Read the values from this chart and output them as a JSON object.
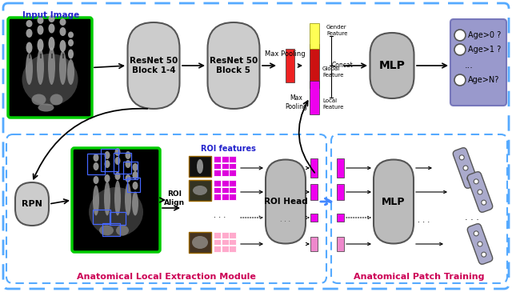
{
  "bg_color": "#ffffff",
  "colors": {
    "resnet_fill": "#cccccc",
    "mlp_fill": "#bbbbbb",
    "rpn_fill": "#cccccc",
    "roi_head_fill": "#bbbbbb",
    "red_bar": "#ee2222",
    "red_bar2": "#cc1111",
    "magenta_bar": "#ee00ee",
    "pink_bar": "#ee88cc",
    "yellow_bar": "#ffff55",
    "blue_bg": "#9999cc",
    "dashed_border": "#55aaff",
    "green_border": "#00cc00",
    "module_text": "#cc0055",
    "patch_text": "#cc0055",
    "roi_features_text": "#2222cc",
    "input_text": "#2222cc",
    "arrow_color": "#111111"
  },
  "top": {
    "input_label": "Input Image",
    "r1_label": "ResNet 50\nBlock 1-4",
    "r2_label": "ResNet 50\nBlock 5",
    "maxpool1_label": "Max Pooling",
    "maxpool2_label": "Max\nPooling",
    "concat_label": "Concat",
    "mlp_label": "MLP",
    "gender_label": "Gender\nFeature",
    "global_label": "Global\nFeature",
    "local_label": "Local\nFeature",
    "age_labels": [
      "Age>0 ?",
      "Age>1 ?",
      "...",
      "Age>N?"
    ]
  },
  "bottom": {
    "rpn_label": "RPN",
    "roi_align_label": "ROI\nAlign",
    "roi_features_label": "ROI features",
    "roi_head_label": "ROI Head",
    "mlp_label": "MLP",
    "module_label": "Anatomical Local Extraction Module",
    "patch_label": "Anatomical Patch Training"
  }
}
